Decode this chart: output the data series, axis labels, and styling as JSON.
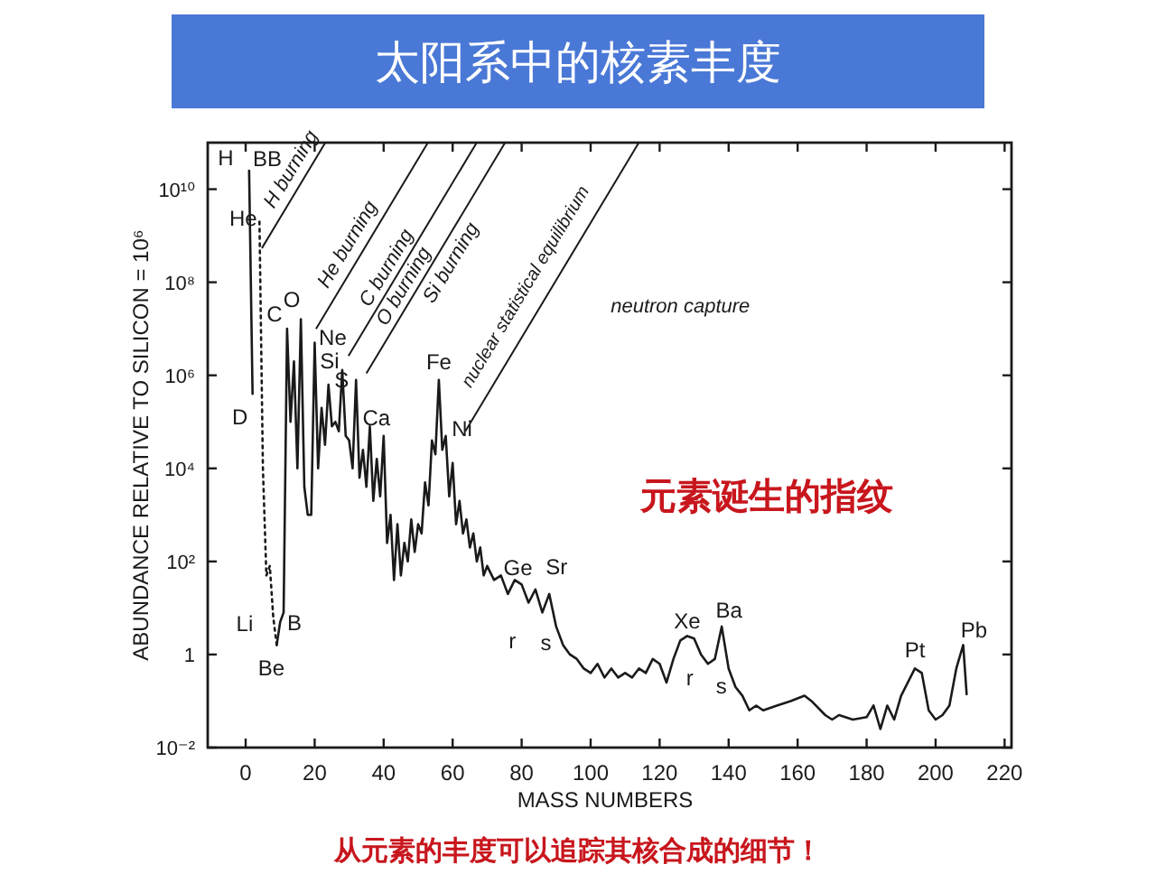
{
  "chart_data": {
    "type": "line",
    "title": "太阳系中的核素丰度",
    "xlabel": "MASS NUMBERS",
    "ylabel": "ABUNDANCE RELATIVE TO SILICON = 10⁶",
    "log": "y",
    "grid": false,
    "xlim": [
      -11,
      222
    ],
    "ylim": [
      0.01,
      100000000000.0
    ],
    "xticks": [
      0,
      20,
      40,
      60,
      80,
      100,
      120,
      140,
      160,
      180,
      200,
      220
    ],
    "yticks": [
      {
        "value": 0.01,
        "label": "10⁻²"
      },
      1,
      {
        "value": 100,
        "label": "10²"
      },
      {
        "value": 10000,
        "label": "10⁴"
      },
      {
        "value": 1000000,
        "label": "10⁶"
      },
      {
        "value": 100000000,
        "label": "10⁸"
      },
      {
        "value": 10000000000,
        "label": "10¹⁰"
      }
    ],
    "series": [
      {
        "color": "#1a1a1a",
        "line_style": "solid",
        "x": [
          1,
          2
        ],
        "values": [
          25000000000.0,
          400000.0
        ]
      },
      {
        "color": "#1a1a1a",
        "line_style": "dotted",
        "x": [
          4,
          5,
          6,
          7,
          8,
          9
        ],
        "values": [
          2000000000.0,
          10000.0,
          50,
          80,
          6.3,
          1.6
        ]
      },
      {
        "color": "#1a1a1a",
        "line_style": "solid",
        "x": [
          9,
          10,
          11,
          12,
          13,
          14,
          15,
          16,
          17,
          18,
          19,
          20,
          21,
          22,
          23,
          24,
          25,
          26,
          27,
          28,
          29,
          30,
          31,
          32,
          33,
          34,
          35,
          36,
          37,
          38,
          39,
          40,
          41,
          42,
          43,
          44,
          45,
          46,
          47,
          48,
          49,
          50,
          51,
          52,
          53,
          54,
          55,
          56,
          57,
          58,
          59,
          60,
          61,
          62,
          63,
          64,
          65,
          66,
          67,
          68,
          69,
          70,
          72,
          74,
          76,
          78,
          80,
          82,
          84,
          86,
          88,
          90,
          92,
          94,
          96,
          98,
          100,
          102,
          104,
          106,
          108,
          110,
          112,
          114,
          116,
          118,
          120,
          122,
          124,
          126,
          128,
          130,
          132,
          134,
          136,
          138,
          140,
          142,
          144,
          146,
          148,
          150,
          154,
          158,
          162,
          164,
          168,
          170,
          172,
          176,
          180,
          182,
          184,
          186,
          188,
          190,
          194,
          196,
          198,
          200,
          202,
          204,
          206,
          208,
          209
        ],
        "values": [
          1.6,
          5,
          8,
          10000000.0,
          100000.0,
          2000000.0,
          10000.0,
          16000000.0,
          4000.0,
          1000.0,
          1000.0,
          5000000.0,
          10000.0,
          200000.0,
          32000.0,
          630000.0,
          80000.0,
          100000.0,
          63000.0,
          1300000.0,
          50000.0,
          40000.0,
          10000.0,
          800000.0,
          6300.0,
          25000.0,
          4000.0,
          80000.0,
          2000.0,
          16000.0,
          2500.0,
          50000.0,
          250,
          1000.0,
          40,
          630,
          50,
          250,
          100,
          800,
          160,
          630,
          400,
          5000.0,
          1600.0,
          40000.0,
          20000.0,
          800000.0,
          25000.0,
          50000.0,
          2500.0,
          13000.0,
          630,
          2000.0,
          400,
          800,
          200,
          400,
          100,
          200,
          50,
          80,
          40,
          50,
          20,
          40,
          32,
          13,
          25,
          8,
          20,
          4,
          1.6,
          1,
          0.8,
          0.5,
          0.4,
          0.63,
          0.32,
          0.5,
          0.32,
          0.4,
          0.32,
          0.5,
          0.4,
          0.8,
          0.63,
          0.25,
          0.8,
          2,
          2.5,
          2.2,
          1,
          0.63,
          0.8,
          4,
          0.5,
          0.2,
          0.13,
          0.063,
          0.08,
          0.063,
          0.08,
          0.1,
          0.13,
          0.1,
          0.05,
          0.04,
          0.05,
          0.04,
          0.045,
          0.08,
          0.025,
          0.08,
          0.04,
          0.13,
          0.5,
          0.4,
          0.063,
          0.04,
          0.05,
          0.08,
          0.5,
          1.6,
          0.14
        ]
      }
    ],
    "annotations": [
      {
        "text": "H burning",
        "x": 4.7,
        "y": 540000000.0
      },
      "He burning",
      "C burning",
      "O burning",
      "Si burning",
      "nuclear statistical equilibrium",
      "neutron capture",
      "BB",
      "元素诞生的指纹",
      "从元素的丰度可以追踪其核合成的细节！",
      {
        "text": "H",
        "x": 1,
        "y": 25000000000.0
      },
      {
        "text": "He",
        "x": 4,
        "y": 2000000000.0
      },
      {
        "text": "D",
        "x": 2,
        "y": 400000.0
      },
      {
        "text": "C",
        "x": 12,
        "y": 10000000.0
      },
      {
        "text": "O",
        "x": 16,
        "y": 16000000.0
      },
      {
        "text": "Ne",
        "x": 20,
        "y": 5000000.0
      },
      {
        "text": "Si",
        "x": 28,
        "y": 1300000.0
      },
      {
        "text": "S",
        "x": 32,
        "y": 800000.0
      },
      {
        "text": "Ca",
        "x": 40,
        "y": 50000.0
      },
      {
        "text": "Fe",
        "x": 56,
        "y": 800000.0
      },
      {
        "text": "Ni",
        "x": 58,
        "y": 50000.0
      },
      {
        "text": "Li",
        "x": 6,
        "y": 50
      },
      {
        "text": "B",
        "x": 11,
        "y": 8
      },
      {
        "text": "Be",
        "x": 9,
        "y": 1.6
      },
      {
        "text": "Ge",
        "x": 80,
        "y": 32
      },
      {
        "text": "Sr",
        "x": 88,
        "y": 20
      },
      {
        "text": "r",
        "x": 82,
        "y": 13
      },
      {
        "text": "s",
        "x": 86,
        "y": 8
      },
      {
        "text": "Xe",
        "x": 128,
        "y": 2.5
      },
      {
        "text": "Ba",
        "x": 138,
        "y": 4
      },
      {
        "text": "r",
        "x": 134,
        "y": 0.63
      },
      {
        "text": "s",
        "x": 140,
        "y": 0.5
      },
      {
        "text": "Pt",
        "x": 194,
        "y": 0.5
      },
      {
        "text": "Pb",
        "x": 208,
        "y": 1.6
      }
    ]
  }
}
